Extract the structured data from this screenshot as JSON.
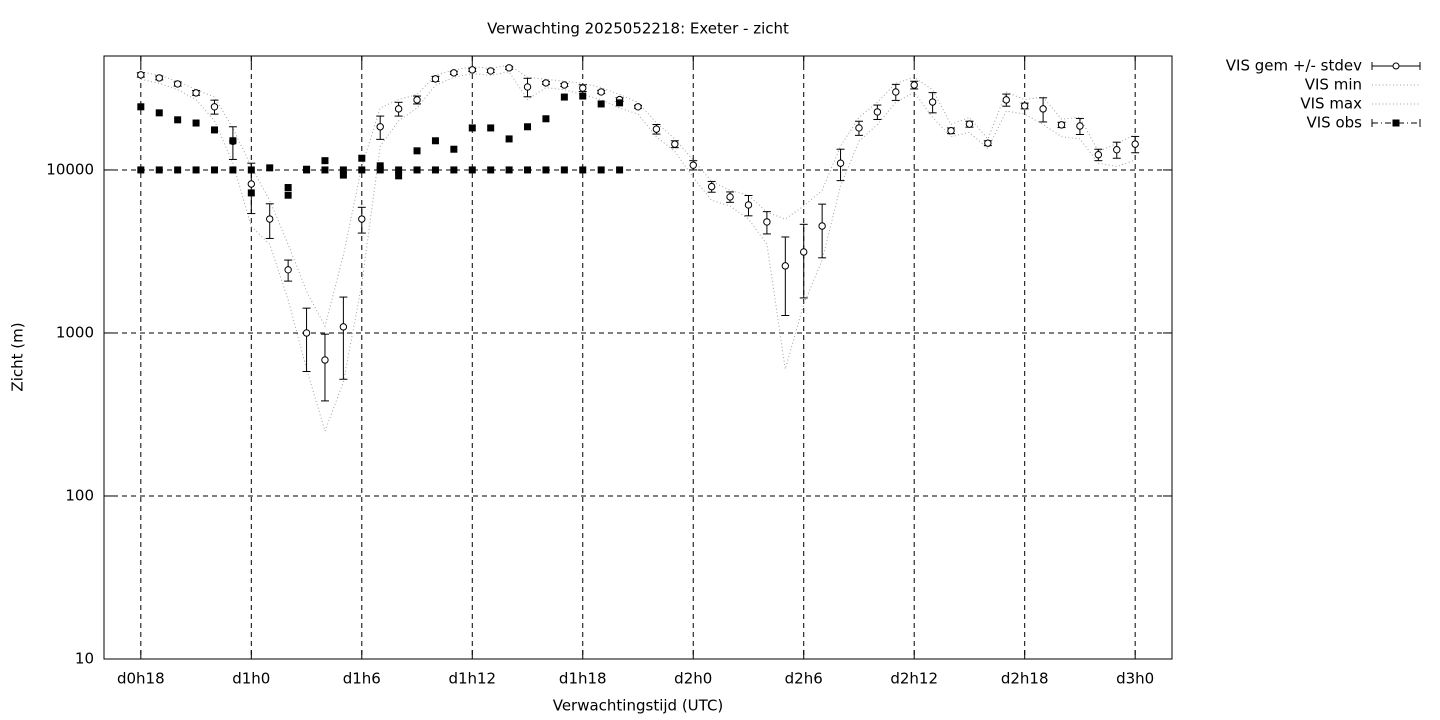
{
  "chart_data": {
    "type": "errorbar-log",
    "title": "Verwachting 2025052218: Exeter - zicht",
    "x_label": "Verwachtingstijd (UTC)",
    "y_label": "Zicht (m)",
    "log_y": true,
    "grid": true,
    "legend": "outside-top-right",
    "xlim": [
      16,
      74
    ],
    "ylim": [
      10,
      50000
    ],
    "xticks": [
      {
        "value": 18,
        "label": "d0h18"
      },
      {
        "value": 24,
        "label": "d1h0"
      },
      {
        "value": 30,
        "label": "d1h6"
      },
      {
        "value": 36,
        "label": "d1h12"
      },
      {
        "value": 42,
        "label": "d1h18"
      },
      {
        "value": 48,
        "label": "d2h0"
      },
      {
        "value": 54,
        "label": "d2h6"
      },
      {
        "value": 60,
        "label": "d2h12"
      },
      {
        "value": 66,
        "label": "d2h18"
      },
      {
        "value": 72,
        "label": "d3h0"
      }
    ],
    "yticks": [
      10,
      100,
      1000,
      10000
    ],
    "x": [
      18,
      19,
      20,
      21,
      22,
      23,
      24,
      25,
      26,
      27,
      28,
      29,
      30,
      31,
      32,
      33,
      34,
      35,
      36,
      37,
      38,
      39,
      40,
      41,
      42,
      43,
      44,
      45,
      46,
      47,
      48,
      49,
      50,
      51,
      52,
      53,
      54,
      55,
      56,
      57,
      58,
      59,
      60,
      61,
      62,
      63,
      64,
      65,
      66,
      67,
      68,
      69,
      70,
      71,
      72
    ],
    "series": [
      {
        "name": "VIS gem +/- stdev",
        "color": "#000000",
        "style": "errorbars",
        "values": [
          38300,
          36700,
          33700,
          29700,
          24400,
          15000,
          8200,
          5000,
          2440,
          1000,
          683,
          1090,
          5000,
          18400,
          23700,
          26900,
          36200,
          39400,
          41100,
          40500,
          42300,
          32300,
          34200,
          33200,
          31800,
          30100,
          27000,
          24400,
          17800,
          14400,
          10700,
          7900,
          6830,
          6100,
          4800,
          2580,
          3140,
          4530,
          11000,
          18100,
          22700,
          30100,
          33200,
          26100,
          17400,
          19100,
          14600,
          26900,
          24700,
          23700,
          18900,
          18600,
          12400,
          13300,
          14400
        ],
        "stdev": [
          1200,
          1000,
          1000,
          1000,
          2400,
          3400,
          2800,
          1200,
          360,
          420,
          300,
          570,
          900,
          3000,
          2300,
          1500,
          1300,
          900,
          900,
          900,
          900,
          4200,
          700,
          700,
          1500,
          700,
          700,
          500,
          1200,
          700,
          700,
          600,
          500,
          870,
          750,
          1300,
          1500,
          1640,
          2400,
          1800,
          2300,
          3400,
          1800,
          3700,
          700,
          800,
          500,
          2300,
          1000,
          4000,
          700,
          2100,
          1000,
          1500,
          1650
        ]
      },
      {
        "name": "VIS min",
        "color": "#a0a0a0",
        "style": "dotted",
        "values": [
          36000,
          34000,
          31000,
          27000,
          20000,
          11000,
          4500,
          3500,
          1600,
          600,
          250,
          500,
          2000,
          14000,
          20000,
          24000,
          33000,
          37000,
          39000,
          38000,
          40000,
          27000,
          32000,
          31000,
          29000,
          27000,
          24000,
          22000,
          16000,
          13000,
          9000,
          6500,
          6000,
          5000,
          3500,
          600,
          1500,
          2800,
          8000,
          15000,
          19000,
          26000,
          30000,
          21000,
          16000,
          17000,
          13500,
          23000,
          22000,
          19000,
          16000,
          15500,
          11000,
          10500,
          11500
        ]
      },
      {
        "name": "VIS max",
        "color": "#a0a0a0",
        "style": "dotted",
        "values": [
          40000,
          38000,
          35000,
          31000,
          28000,
          18000,
          10500,
          6500,
          3500,
          1800,
          1100,
          3000,
          10500,
          24000,
          27000,
          29000,
          38000,
          41000,
          43000,
          42000,
          44000,
          37000,
          36000,
          35000,
          34000,
          32000,
          29000,
          26000,
          19500,
          15500,
          11500,
          8500,
          7500,
          7000,
          5500,
          5000,
          6000,
          7500,
          14000,
          21000,
          26000,
          34000,
          37000,
          31000,
          19000,
          21000,
          15500,
          30000,
          27000,
          28000,
          20500,
          21000,
          13000,
          14500,
          16500
        ]
      },
      {
        "name": "VIS obs",
        "color": "#000000",
        "style": "squares",
        "x": [
          18,
          19,
          20,
          21,
          22,
          23,
          24,
          25,
          26,
          27,
          28,
          29,
          30,
          31,
          32,
          33,
          34,
          35,
          36,
          37,
          38,
          39,
          40,
          41,
          42,
          43,
          44,
          18,
          19,
          20,
          21,
          22,
          23,
          24,
          26,
          27,
          28,
          29,
          30,
          31,
          32,
          33,
          34,
          35,
          36,
          37,
          38,
          39,
          40,
          41,
          42,
          43,
          44
        ],
        "values": [
          24400,
          22400,
          20300,
          19400,
          17600,
          15100,
          7230,
          10300,
          7800,
          10100,
          11400,
          9300,
          11800,
          10600,
          9200,
          13100,
          15100,
          13400,
          18100,
          18100,
          15500,
          18400,
          20600,
          28000,
          28400,
          25400,
          25800,
          10000,
          10000,
          10000,
          10000,
          10000,
          10000,
          10000,
          7000,
          10000,
          10000,
          10000,
          10000,
          10000,
          10000,
          10000,
          10000,
          10000,
          10000,
          10000,
          10000,
          10000,
          10000,
          10000,
          10000,
          10000,
          10000
        ]
      }
    ]
  }
}
